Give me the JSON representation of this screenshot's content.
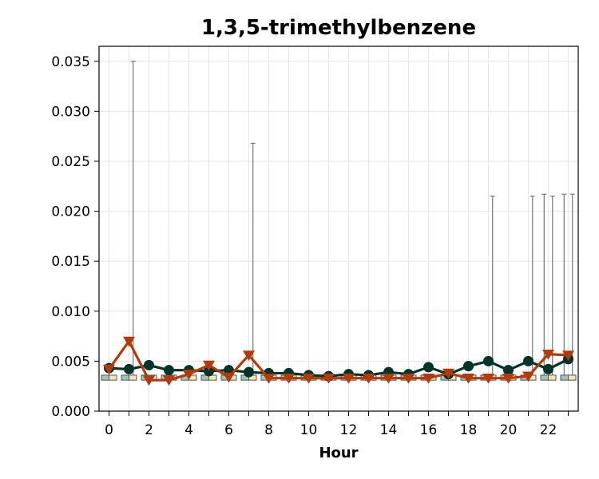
{
  "chart_data": {
    "type": "box-line",
    "title": "1,3,5-trimethylbenzene",
    "xlabel": "Hour",
    "ylabel": "",
    "x": [
      0,
      1,
      2,
      3,
      4,
      5,
      6,
      7,
      8,
      9,
      10,
      11,
      12,
      13,
      14,
      15,
      16,
      17,
      18,
      19,
      20,
      21,
      22,
      23
    ],
    "xticks": [
      0,
      2,
      4,
      6,
      8,
      10,
      12,
      14,
      16,
      18,
      20,
      22
    ],
    "yticks": [
      0.0,
      0.005,
      0.01,
      0.015,
      0.02,
      0.025,
      0.03,
      0.035
    ],
    "ytick_labels": [
      "0.000",
      "0.005",
      "0.010",
      "0.015",
      "0.020",
      "0.025",
      "0.030",
      "0.035"
    ],
    "xlim": [
      -0.5,
      23.5
    ],
    "ylim": [
      0,
      0.0365
    ],
    "grid": true,
    "series": [
      {
        "marker": "circle",
        "color": "#00332a",
        "values": [
          0.0043,
          0.0042,
          0.0046,
          0.0041,
          0.0041,
          0.004,
          0.0041,
          0.0039,
          0.0038,
          0.0038,
          0.0036,
          0.0035,
          0.0037,
          0.0036,
          0.0039,
          0.0037,
          0.0044,
          0.0037,
          0.0045,
          0.005,
          0.0041,
          0.005,
          0.0042,
          0.0052
        ]
      },
      {
        "marker": "triangle-down",
        "color": "#b33a0a",
        "values": [
          0.0042,
          0.007,
          0.0031,
          0.0031,
          0.0037,
          0.0046,
          0.0034,
          0.0056,
          0.0033,
          0.0033,
          0.0033,
          0.0033,
          0.0033,
          0.0033,
          0.0033,
          0.0033,
          0.0033,
          0.0038,
          0.0033,
          0.0033,
          0.0033,
          0.0035,
          0.0057,
          0.0056
        ]
      }
    ],
    "boxes": {
      "q1": [
        0.0031,
        0.0031,
        0.0031,
        0.0031,
        0.0031,
        0.0031,
        0.0031,
        0.0031,
        0.0031,
        0.0031,
        0.0031,
        0.0031,
        0.0031,
        0.0031,
        0.0031,
        0.0031,
        0.0031,
        0.0031,
        0.0031,
        0.0031,
        0.0031,
        0.0031,
        0.0031,
        0.0031
      ],
      "q3": [
        0.0036,
        0.0036,
        0.0036,
        0.0036,
        0.0036,
        0.0036,
        0.0036,
        0.0036,
        0.0036,
        0.0036,
        0.0036,
        0.0036,
        0.0036,
        0.0036,
        0.0036,
        0.0036,
        0.0036,
        0.0036,
        0.0036,
        0.0036,
        0.0036,
        0.0036,
        0.0036,
        0.0036
      ],
      "whisker_high": [
        0.0036,
        0.035,
        0.0036,
        0.0036,
        0.0036,
        0.0036,
        0.0036,
        0.0268,
        0.0036,
        0.0036,
        0.0036,
        0.0036,
        0.0036,
        0.0036,
        0.0036,
        0.0036,
        0.0036,
        0.0036,
        0.0036,
        0.0215,
        0.0036,
        0.0215,
        0.0215,
        0.0217
      ],
      "whisker_high_alt": [
        null,
        null,
        null,
        null,
        null,
        null,
        null,
        null,
        null,
        null,
        null,
        null,
        null,
        null,
        null,
        null,
        null,
        null,
        null,
        null,
        null,
        null,
        0.0217,
        0.0217
      ],
      "fill_primary": "#9ec5b8",
      "fill_secondary": "#f2e6b3",
      "edge": "#555555"
    }
  }
}
